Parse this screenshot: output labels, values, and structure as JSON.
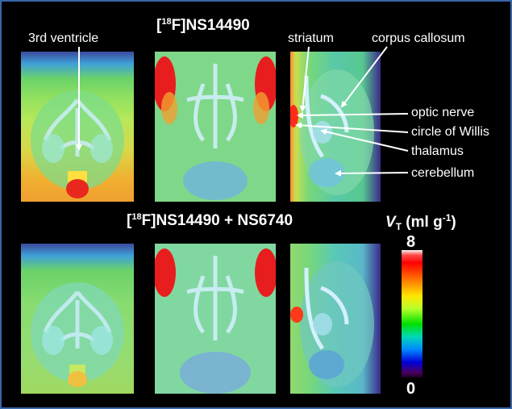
{
  "titles": {
    "top_prefix": "[",
    "top_sup": "18",
    "top_suffix": "F]NS14490",
    "bottom_prefix": "[",
    "bottom_sup": "18",
    "bottom_suffix": "F]NS14490 + NS6740"
  },
  "annotations": {
    "third_ventricle": "3rd ventricle",
    "striatum": "striatum",
    "corpus_callosum": "corpus callosum",
    "optic_nerve": "optic nerve",
    "circle_of_willis": "circle of Willis",
    "thalamus": "thalamus",
    "cerebellum": "cerebellum"
  },
  "colorbar": {
    "quantity_letter": "V",
    "quantity_subscript": "T",
    "unit_prefix": " (ml g",
    "unit_exponent": "-1",
    "unit_suffix": ")",
    "max_label": "8",
    "min_label": "0",
    "colors": [
      "#f4f4f4",
      "#ff0000",
      "#ff6a00",
      "#ffe600",
      "#00e000",
      "#00d8b8",
      "#0088ff",
      "#0000d8",
      "#4a0060"
    ]
  },
  "colors": {
    "border": "#3a66a8",
    "background": "#000000",
    "text": "#ffffff"
  }
}
